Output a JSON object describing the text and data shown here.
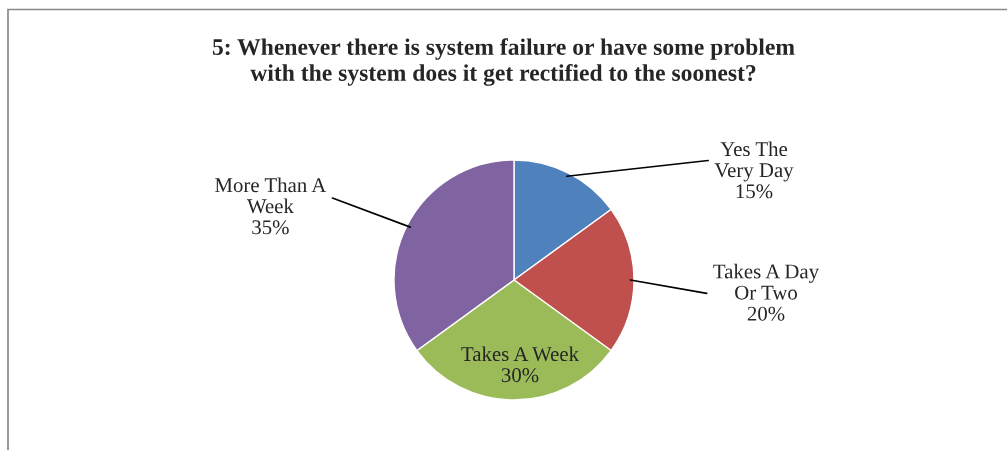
{
  "chart_data": {
    "type": "pie",
    "title": "5: Whenever there is system failure or have some problem\nwith the system does it get rectified to the soonest?",
    "categories": [
      "Yes The\nVery Day",
      "Takes A Day\nOr Two",
      "Takes A Week",
      "More Than A\nWeek"
    ],
    "values": [
      15,
      20,
      30,
      35
    ],
    "colors": [
      "#4f81bd",
      "#c0504d",
      "#9bbb59",
      "#8064a2"
    ],
    "value_labels": [
      "15%",
      "20%",
      "30%",
      "35%"
    ]
  }
}
